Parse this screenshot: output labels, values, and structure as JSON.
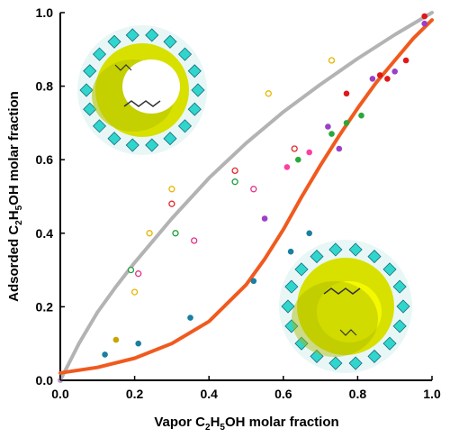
{
  "chart_data": {
    "type": "scatter",
    "xlabel": {
      "prefix": "Vapor C",
      "sub1": "2",
      "mid": "H",
      "sub2": "5",
      "suffix": "OH molar fraction"
    },
    "ylabel": {
      "prefix": "Adsorded C",
      "sub1": "2",
      "mid": "H",
      "sub2": "5",
      "suffix": "OH molar fraction"
    },
    "xlim": [
      0,
      1
    ],
    "ylim": [
      0,
      1
    ],
    "x_ticks": [
      "0.0",
      "0.2",
      "0.4",
      "0.6",
      "0.8",
      "1.0"
    ],
    "y_ticks": [
      "0.0",
      "0.2",
      "0.4",
      "0.6",
      "0.8",
      "1.0"
    ],
    "grid": false,
    "legend": "none",
    "insets": [
      {
        "name": "framework-inset-open",
        "depicts": "cage structure with open pore",
        "position": "top-left"
      },
      {
        "name": "framework-inset-filled",
        "depicts": "cage structure with filled pore",
        "position": "bottom-right"
      }
    ],
    "series": [
      {
        "kind": "curve",
        "color": "#b3b3b3",
        "x": [
          0,
          0.05,
          0.1,
          0.15,
          0.2,
          0.3,
          0.4,
          0.5,
          0.6,
          0.7,
          0.8,
          0.9,
          1.0
        ],
        "y": [
          0,
          0.1,
          0.185,
          0.255,
          0.32,
          0.44,
          0.55,
          0.645,
          0.73,
          0.805,
          0.875,
          0.94,
          1.0
        ]
      },
      {
        "kind": "curve",
        "color": "#f05a1e",
        "x": [
          0,
          0.1,
          0.2,
          0.3,
          0.4,
          0.5,
          0.55,
          0.6,
          0.65,
          0.7,
          0.75,
          0.8,
          0.85,
          0.9,
          0.95,
          1.0
        ],
        "y": [
          0.02,
          0.035,
          0.06,
          0.1,
          0.16,
          0.26,
          0.33,
          0.41,
          0.5,
          0.585,
          0.665,
          0.74,
          0.81,
          0.87,
          0.93,
          0.98
        ]
      },
      {
        "kind": "points",
        "color": "#c8a400",
        "filled": true,
        "x": [
          0.15
        ],
        "y": [
          0.11
        ]
      },
      {
        "kind": "points",
        "color": "#e8b400",
        "filled": false,
        "x": [
          0.2,
          0.24,
          0.3,
          0.56,
          0.73
        ],
        "y": [
          0.24,
          0.4,
          0.52,
          0.78,
          0.87
        ]
      },
      {
        "kind": "points",
        "color": "#e0338a",
        "filled": false,
        "x": [
          0.21,
          0.36,
          0.52
        ],
        "y": [
          0.29,
          0.38,
          0.52
        ]
      },
      {
        "kind": "points",
        "color": "#1e9e3c",
        "filled": false,
        "x": [
          0.19,
          0.31,
          0.47
        ],
        "y": [
          0.3,
          0.4,
          0.54
        ]
      },
      {
        "kind": "points",
        "color": "#e02a2a",
        "filled": false,
        "x": [
          0.3,
          0.47,
          0.63
        ],
        "y": [
          0.48,
          0.57,
          0.63
        ]
      },
      {
        "kind": "points",
        "color": "#1a7fa0",
        "filled": true,
        "x": [
          0.12,
          0.21,
          0.35,
          0.52,
          0.62,
          0.67
        ],
        "y": [
          0.07,
          0.1,
          0.17,
          0.27,
          0.35,
          0.4
        ]
      },
      {
        "kind": "points",
        "color": "#9b3fc8",
        "filled": true,
        "x": [
          0.55,
          0.72,
          0.75,
          0.84,
          0.9,
          0.98
        ],
        "y": [
          0.44,
          0.69,
          0.63,
          0.82,
          0.84,
          0.97
        ]
      },
      {
        "kind": "points",
        "color": "#ff3fa0",
        "filled": true,
        "x": [
          0.61,
          0.67
        ],
        "y": [
          0.58,
          0.62
        ]
      },
      {
        "kind": "points",
        "color": "#2aa83c",
        "filled": true,
        "x": [
          0.64,
          0.73,
          0.77,
          0.81
        ],
        "y": [
          0.6,
          0.67,
          0.7,
          0.72
        ]
      },
      {
        "kind": "points",
        "color": "#e01818",
        "filled": true,
        "x": [
          0.77,
          0.86,
          0.88,
          0.93,
          0.98
        ],
        "y": [
          0.78,
          0.83,
          0.82,
          0.87,
          0.99
        ]
      }
    ]
  }
}
